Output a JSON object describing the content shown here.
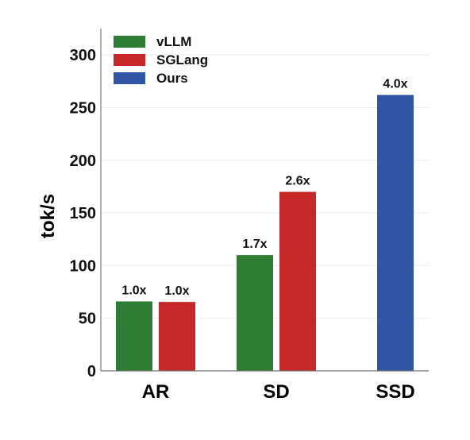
{
  "chart_data": {
    "type": "bar",
    "ylabel": "tok/s",
    "ylim": [
      0,
      325
    ],
    "yticks": [
      "0",
      "50",
      "100",
      "150",
      "200",
      "250",
      "300"
    ],
    "grid": true,
    "legend_position": "top-left",
    "categories": [
      "AR",
      "SD",
      "SSD"
    ],
    "series": [
      {
        "name": "vLLM",
        "color": "#2e7d32",
        "values": [
          66,
          110,
          null
        ],
        "labels": [
          "1.0x",
          "1.7x",
          ""
        ]
      },
      {
        "name": "SGLang",
        "color": "#c62828",
        "values": [
          65.5,
          170,
          null
        ],
        "labels": [
          "1.0x",
          "2.6x",
          ""
        ]
      },
      {
        "name": "Ours",
        "color": "#2f55a4",
        "values": [
          null,
          null,
          262
        ],
        "labels": [
          "",
          "",
          "4.0x"
        ]
      }
    ]
  }
}
